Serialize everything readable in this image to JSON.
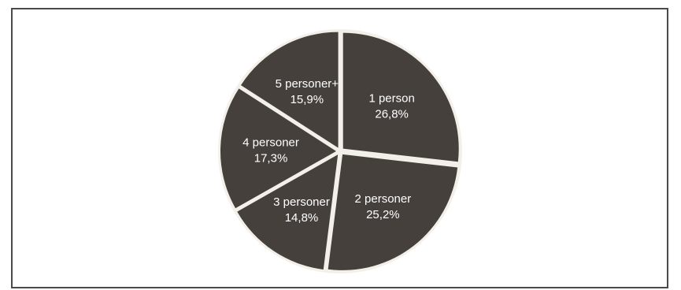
{
  "chart_data": {
    "type": "pie",
    "title": "",
    "slices": [
      {
        "label": "1 person",
        "value": 26.8,
        "value_label": "26,8%"
      },
      {
        "label": "2 personer",
        "value": 25.2,
        "value_label": "25,2%"
      },
      {
        "label": "3 personer",
        "value": 14.8,
        "value_label": "14,8%"
      },
      {
        "label": "4 personer",
        "value": 17.3,
        "value_label": "17,3%"
      },
      {
        "label": "5 personer+",
        "value": 15.9,
        "value_label": "15,9%"
      }
    ],
    "start_angle_deg": 0,
    "direction": "clockwise",
    "exploded": true,
    "legend": "none",
    "colors": {
      "slice": "#46403d",
      "separator": "#f3f0ea",
      "label": "#ffffff",
      "frame": "#4a4a4a",
      "background": "#ffffff"
    }
  }
}
